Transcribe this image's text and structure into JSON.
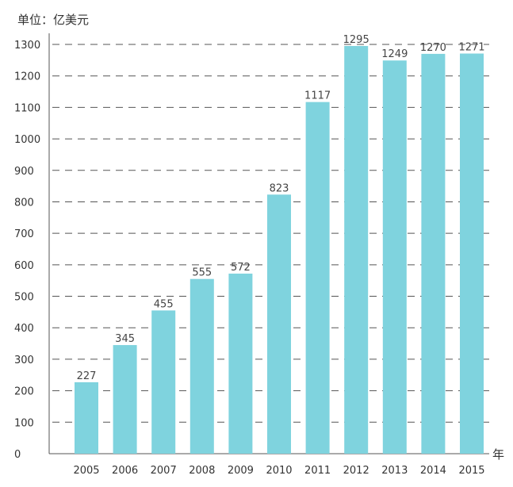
{
  "chart_data": {
    "type": "bar",
    "unit_label": "单位：亿美元",
    "x_unit": "年",
    "categories": [
      "2005",
      "2006",
      "2007",
      "2008",
      "2009",
      "2010",
      "2011",
      "2012",
      "2013",
      "2014",
      "2015"
    ],
    "values": [
      227,
      345,
      455,
      555,
      572,
      823,
      1117,
      1295,
      1249,
      1270,
      1271
    ],
    "data_labels": [
      "227",
      "345",
      "455",
      "555",
      "572",
      "823",
      "1117",
      "1295",
      "1249",
      "1270",
      "1271"
    ],
    "y_ticks": [
      0,
      100,
      200,
      300,
      400,
      500,
      600,
      700,
      800,
      900,
      1000,
      1100,
      1200,
      1300
    ],
    "ylim": [
      0,
      1300
    ],
    "grid": "dashed-horizontal",
    "bar_color": "#7fd3de",
    "grid_color": "#555555"
  }
}
